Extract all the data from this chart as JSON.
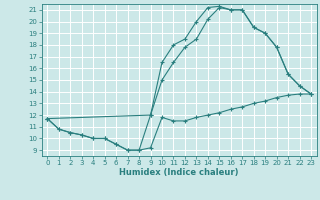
{
  "title": "",
  "xlabel": "Humidex (Indice chaleur)",
  "bg_color": "#cce8e8",
  "grid_color": "#ffffff",
  "line_color": "#2a7f7f",
  "xlim": [
    -0.5,
    23.5
  ],
  "ylim": [
    8.5,
    21.5
  ],
  "xticks": [
    0,
    1,
    2,
    3,
    4,
    5,
    6,
    7,
    8,
    9,
    10,
    11,
    12,
    13,
    14,
    15,
    16,
    17,
    18,
    19,
    20,
    21,
    22,
    23
  ],
  "yticks": [
    9,
    10,
    11,
    12,
    13,
    14,
    15,
    16,
    17,
    18,
    19,
    20,
    21
  ],
  "line1_x": [
    0,
    1,
    2,
    3,
    4,
    5,
    6,
    7,
    8,
    9,
    10,
    11,
    12,
    13,
    14,
    15,
    16,
    17,
    18,
    19,
    20,
    21,
    22,
    23
  ],
  "line1_y": [
    11.7,
    10.8,
    10.5,
    10.3,
    10.0,
    10.0,
    9.5,
    9.0,
    9.0,
    9.2,
    11.8,
    11.5,
    11.5,
    11.8,
    12.0,
    12.2,
    12.5,
    12.7,
    13.0,
    13.2,
    13.5,
    13.7,
    13.8,
    13.8
  ],
  "line2_x": [
    0,
    1,
    2,
    3,
    4,
    5,
    6,
    7,
    8,
    9,
    10,
    11,
    12,
    13,
    14,
    15,
    16,
    17,
    18,
    19,
    20,
    21,
    22,
    23
  ],
  "line2_y": [
    11.7,
    10.8,
    10.5,
    10.3,
    10.0,
    10.0,
    9.5,
    9.0,
    9.0,
    12.0,
    15.0,
    16.5,
    17.8,
    18.5,
    20.2,
    21.2,
    21.0,
    21.0,
    19.5,
    19.0,
    17.8,
    15.5,
    14.5,
    13.8
  ],
  "line3_x": [
    0,
    9,
    10,
    11,
    12,
    13,
    14,
    15,
    16,
    17,
    18,
    19,
    20,
    21,
    22,
    23
  ],
  "line3_y": [
    11.7,
    12.0,
    16.5,
    18.0,
    18.5,
    20.0,
    21.2,
    21.3,
    21.0,
    21.0,
    19.5,
    19.0,
    17.8,
    15.5,
    14.5,
    13.8
  ]
}
